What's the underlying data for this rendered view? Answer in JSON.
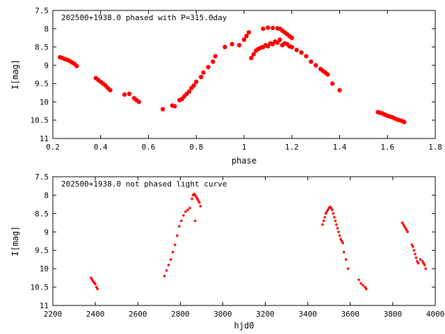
{
  "chart_data": [
    {
      "type": "scatter",
      "title": "202500+1938.0 phased with P=315.0day",
      "xlabel": "phase",
      "ylabel": "I[mag]",
      "xlim": [
        0.2,
        1.8
      ],
      "ylim": [
        11,
        7.5
      ],
      "y_inverted": true,
      "xticks": [
        "0.2",
        "0.4",
        "0.6",
        "0.8",
        "1",
        "1.2",
        "1.4",
        "1.6",
        "1.8"
      ],
      "yticks": [
        "7.5",
        "8",
        "8.5",
        "9",
        "9.5",
        "10",
        "10.5",
        "11"
      ],
      "grid": false,
      "marker": "filled-circle",
      "color": "#ff0000",
      "series": [
        {
          "x": [
            0.23,
            0.24,
            0.25,
            0.26,
            0.27,
            0.28,
            0.29,
            0.3,
            0.38,
            0.39,
            0.4,
            0.41,
            0.42,
            0.43,
            0.44,
            0.5,
            0.52,
            0.54,
            0.55,
            0.56,
            0.66,
            0.7,
            0.71,
            0.73,
            0.74,
            0.75,
            0.76,
            0.77,
            0.78,
            0.79,
            0.8,
            0.82,
            0.83,
            0.85,
            0.87,
            0.88,
            0.92,
            0.95,
            0.98,
            1.0,
            1.01,
            1.02,
            1.03,
            1.04,
            1.05,
            1.06,
            1.07,
            1.08,
            1.09,
            1.1,
            1.11,
            1.12,
            1.13,
            1.14,
            1.15,
            1.16,
            1.17,
            1.18,
            1.19,
            1.2,
            1.08,
            1.1,
            1.12,
            1.14,
            1.15,
            1.16,
            1.17,
            1.18,
            1.19,
            1.2,
            1.22,
            1.24,
            1.26,
            1.28,
            1.3,
            1.32,
            1.33,
            1.34,
            1.35,
            1.37,
            1.4,
            1.56,
            1.57,
            1.58,
            1.59,
            1.6,
            1.61,
            1.62,
            1.63,
            1.64,
            1.65,
            1.66,
            1.67
          ],
          "y": [
            8.78,
            8.8,
            8.83,
            8.85,
            8.88,
            8.92,
            8.96,
            9.02,
            9.35,
            9.4,
            9.45,
            9.5,
            9.55,
            9.62,
            9.68,
            9.8,
            9.78,
            9.9,
            9.95,
            10.0,
            10.2,
            10.1,
            10.12,
            9.95,
            9.92,
            9.85,
            9.78,
            9.72,
            9.62,
            9.55,
            9.45,
            9.32,
            9.2,
            9.05,
            8.9,
            8.75,
            8.5,
            8.42,
            8.45,
            8.3,
            8.2,
            8.1,
            8.8,
            8.7,
            8.6,
            8.55,
            8.52,
            8.5,
            8.45,
            8.48,
            8.4,
            8.42,
            8.35,
            8.38,
            8.3,
            8.45,
            8.4,
            8.42,
            8.48,
            8.5,
            8.0,
            7.97,
            7.98,
            7.99,
            8.0,
            8.05,
            8.1,
            8.15,
            8.2,
            8.25,
            8.58,
            8.65,
            8.75,
            8.9,
            9.0,
            9.1,
            9.15,
            9.2,
            9.25,
            9.5,
            9.68,
            10.28,
            10.3,
            10.32,
            10.35,
            10.38,
            10.4,
            10.42,
            10.45,
            10.48,
            10.5,
            10.52,
            10.55
          ]
        }
      ]
    },
    {
      "type": "scatter",
      "title": "202500+1938.0 not phased light curve",
      "xlabel": "hjd0",
      "ylabel": "I[mag]",
      "xlim": [
        2200,
        4000
      ],
      "ylim": [
        11,
        7.5
      ],
      "y_inverted": true,
      "xticks": [
        "2200",
        "2400",
        "2600",
        "2800",
        "3000",
        "3200",
        "3400",
        "3600",
        "3800",
        "4000"
      ],
      "yticks": [
        "7.5",
        "8",
        "8.5",
        "9",
        "9.5",
        "10",
        "10.5",
        "11"
      ],
      "grid": false,
      "marker": "small-filled-circle",
      "color": "#ff0000",
      "series": [
        {
          "x": [
            2380,
            2385,
            2390,
            2395,
            2400,
            2405,
            2410,
            2725,
            2735,
            2745,
            2755,
            2765,
            2775,
            2785,
            2795,
            2805,
            2815,
            2825,
            2835,
            2845,
            2855,
            2860,
            2865,
            2870,
            2875,
            2880,
            2885,
            2890,
            2895,
            2870,
            3470,
            3475,
            3480,
            3485,
            3490,
            3495,
            3500,
            3505,
            3510,
            3515,
            3520,
            3525,
            3530,
            3535,
            3540,
            3545,
            3550,
            3555,
            3560,
            3565,
            3570,
            3580,
            3590,
            3640,
            3650,
            3660,
            3670,
            3675,
            3845,
            3850,
            3855,
            3860,
            3865,
            3870,
            3890,
            3895,
            3900,
            3905,
            3910,
            3915,
            3920,
            3930,
            3940,
            3945,
            3950,
            3955
          ],
          "y": [
            10.25,
            10.3,
            10.35,
            10.38,
            10.42,
            10.5,
            10.55,
            10.2,
            10.05,
            9.9,
            9.75,
            9.55,
            9.35,
            9.1,
            8.85,
            8.7,
            8.55,
            8.45,
            8.4,
            8.35,
            8.1,
            8.0,
            7.97,
            8.0,
            8.05,
            8.1,
            8.15,
            8.2,
            8.3,
            8.7,
            8.8,
            8.7,
            8.6,
            8.5,
            8.45,
            8.4,
            8.35,
            8.32,
            8.35,
            8.4,
            8.5,
            8.6,
            8.7,
            8.8,
            8.9,
            9.0,
            9.1,
            9.2,
            9.25,
            9.3,
            9.55,
            9.75,
            10.0,
            10.3,
            10.4,
            10.45,
            10.5,
            10.55,
            8.75,
            8.8,
            8.85,
            8.9,
            8.95,
            9.0,
            9.35,
            9.4,
            9.5,
            9.6,
            9.7,
            9.8,
            9.85,
            9.75,
            9.8,
            9.85,
            9.9,
            10.0
          ]
        }
      ]
    }
  ]
}
